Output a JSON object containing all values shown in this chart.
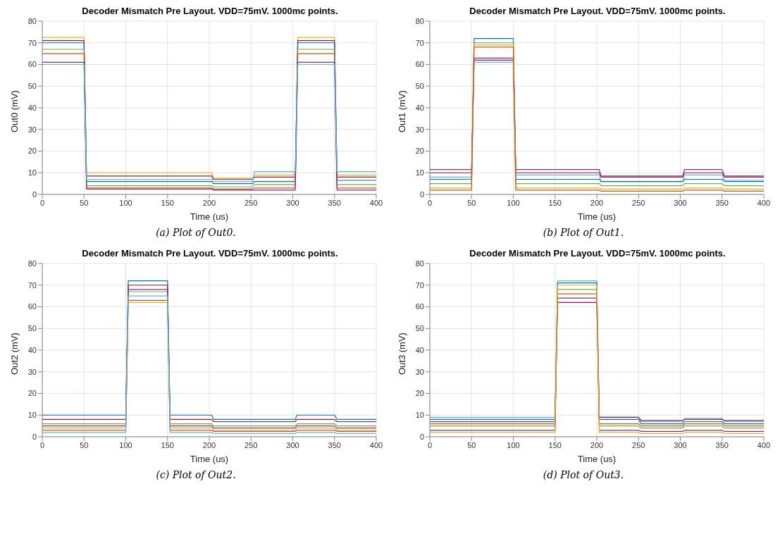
{
  "chart_data": [
    {
      "type": "line",
      "title": "Decoder Mismatch Pre Layout. VDD=75mV. 1000mc points.",
      "xlabel": "Time (us)",
      "ylabel": "Out0 (mV)",
      "annotations": [
        "(a) Plot of Out0."
      ],
      "xlim": [
        0,
        400
      ],
      "xticks": [
        0,
        50,
        100,
        150,
        200,
        250,
        300,
        350,
        400
      ],
      "ylim": [
        0,
        80
      ],
      "yticks": [
        0,
        10,
        20,
        30,
        40,
        50,
        60,
        70,
        80
      ],
      "grid": true,
      "marker": "none",
      "line_style": "solid",
      "x": [
        0,
        50,
        53,
        203,
        205,
        252,
        254,
        303,
        306,
        350,
        353,
        400
      ],
      "series": [
        {
          "color": "#edb120",
          "values": [
            72.5,
            72.5,
            10,
            10,
            7.5,
            7.5,
            9,
            9,
            72.5,
            72.5,
            9,
            9
          ]
        },
        {
          "color": "#a2142f",
          "values": [
            71,
            71,
            8.5,
            8.5,
            7,
            7,
            8,
            8,
            71,
            71,
            8,
            8
          ]
        },
        {
          "color": "#0072bd",
          "values": [
            70,
            70,
            6,
            6,
            5,
            5,
            6,
            6,
            70,
            70,
            6.5,
            6.5
          ]
        },
        {
          "color": "#77ac30",
          "values": [
            67,
            67,
            4,
            4,
            3.5,
            3.5,
            4.5,
            4.5,
            67,
            67,
            4.5,
            4.5
          ]
        },
        {
          "color": "#d95319",
          "values": [
            65,
            65,
            3,
            3,
            2.5,
            2.5,
            3,
            3,
            65,
            65,
            3,
            3
          ]
        },
        {
          "color": "#7e2f8e",
          "values": [
            61,
            61,
            2.5,
            2.5,
            2,
            2,
            2,
            2,
            61,
            61,
            2,
            2
          ]
        },
        {
          "color": "#4dbeee",
          "values": [
            60,
            60,
            7,
            7,
            6,
            6,
            10.5,
            10.5,
            60,
            60,
            10.5,
            10.5
          ]
        }
      ]
    },
    {
      "type": "line",
      "title": "Decoder Mismatch Pre Layout. VDD=75mV. 1000mc points.",
      "xlabel": "Time (us)",
      "ylabel": "Out1 (mV)",
      "annotations": [
        "(b) Plot of Out1."
      ],
      "xlim": [
        0,
        400
      ],
      "xticks": [
        0,
        50,
        100,
        150,
        200,
        250,
        300,
        350,
        400
      ],
      "ylim": [
        0,
        80
      ],
      "yticks": [
        0,
        10,
        20,
        30,
        40,
        50,
        60,
        70,
        80
      ],
      "grid": true,
      "marker": "none",
      "line_style": "solid",
      "x": [
        0,
        50,
        53,
        100,
        103,
        203,
        205,
        303,
        305,
        350,
        353,
        400
      ],
      "series": [
        {
          "color": "#7e2f8e",
          "values": [
            11.5,
            11.5,
            63,
            63,
            11.5,
            11.5,
            8.5,
            8.5,
            11.5,
            11.5,
            8.5,
            8.5
          ]
        },
        {
          "color": "#a2142f",
          "values": [
            10,
            10,
            62,
            62,
            10,
            10,
            8,
            8,
            10,
            10,
            8,
            8
          ]
        },
        {
          "color": "#4dbeee",
          "values": [
            8,
            8,
            61,
            61,
            9,
            9,
            6,
            6,
            9,
            9,
            6.5,
            6.5
          ]
        },
        {
          "color": "#0072bd",
          "values": [
            7,
            7,
            72,
            72,
            7,
            7,
            6,
            6,
            7,
            7,
            6,
            6
          ]
        },
        {
          "color": "#77ac30",
          "values": [
            5,
            5,
            70,
            70,
            5,
            5,
            4,
            4,
            5,
            5,
            4,
            4
          ]
        },
        {
          "color": "#edb120",
          "values": [
            3,
            3,
            69,
            69,
            3,
            3,
            2.5,
            2.5,
            3,
            3,
            2.5,
            2.5
          ]
        },
        {
          "color": "#d95319",
          "values": [
            2,
            2,
            68,
            68,
            2,
            2,
            1.5,
            1.5,
            2,
            2,
            1.5,
            1.5
          ]
        }
      ]
    },
    {
      "type": "line",
      "title": "Decoder Mismatch Pre Layout. VDD=75mV. 1000mc points.",
      "xlabel": "Time (us)",
      "ylabel": "Out2 (mV)",
      "annotations": [
        "(c) Plot of Out2."
      ],
      "xlim": [
        0,
        400
      ],
      "xticks": [
        0,
        50,
        100,
        150,
        200,
        250,
        300,
        350,
        400
      ],
      "ylim": [
        0,
        80
      ],
      "yticks": [
        0,
        10,
        20,
        30,
        40,
        50,
        60,
        70,
        80
      ],
      "grid": true,
      "marker": "none",
      "line_style": "solid",
      "x": [
        0,
        100,
        103,
        150,
        153,
        203,
        205,
        303,
        305,
        350,
        353,
        400
      ],
      "series": [
        {
          "color": "#0072bd",
          "values": [
            10,
            10,
            72,
            72,
            10,
            10,
            8,
            8,
            10,
            10,
            8,
            8
          ]
        },
        {
          "color": "#a2142f",
          "values": [
            8,
            8,
            70,
            70,
            8,
            8,
            7,
            7,
            8,
            8,
            7,
            7
          ]
        },
        {
          "color": "#77ac30",
          "values": [
            6,
            6,
            67,
            67,
            6,
            6,
            5,
            5,
            6,
            6,
            5,
            5
          ]
        },
        {
          "color": "#7e2f8e",
          "values": [
            5,
            5,
            68,
            68,
            5,
            5,
            4,
            4,
            5,
            5,
            4,
            4
          ]
        },
        {
          "color": "#edb120",
          "values": [
            4,
            4,
            62,
            62,
            4,
            4,
            3,
            3,
            4,
            4,
            3,
            3
          ]
        },
        {
          "color": "#d95319",
          "values": [
            3,
            3,
            63,
            63,
            3,
            3,
            2.5,
            2.5,
            3,
            3,
            2.5,
            2.5
          ]
        },
        {
          "color": "#4dbeee",
          "values": [
            2,
            2,
            65,
            65,
            2,
            2,
            1.5,
            1.5,
            2,
            2,
            1.5,
            1.5
          ]
        }
      ]
    },
    {
      "type": "line",
      "title": "Decoder Mismatch Pre Layout. VDD=75mV. 1000mc points.",
      "xlabel": "Time (us)",
      "ylabel": "Out3 (mV)",
      "annotations": [
        "(d) Plot of Out3."
      ],
      "xlim": [
        0,
        400
      ],
      "xticks": [
        0,
        50,
        100,
        150,
        200,
        250,
        300,
        350,
        400
      ],
      "ylim": [
        0,
        80
      ],
      "yticks": [
        0,
        10,
        20,
        30,
        40,
        50,
        60,
        70,
        80
      ],
      "grid": true,
      "marker": "none",
      "line_style": "solid",
      "x": [
        0,
        150,
        153,
        200,
        203,
        250,
        253,
        303,
        305,
        350,
        353,
        400
      ],
      "series": [
        {
          "color": "#4dbeee",
          "values": [
            9,
            9,
            72,
            72,
            9,
            9,
            7,
            7,
            8.5,
            8.5,
            7,
            7
          ]
        },
        {
          "color": "#0072bd",
          "values": [
            8,
            8,
            71,
            71,
            8,
            8,
            6,
            6,
            7,
            7,
            6,
            6
          ]
        },
        {
          "color": "#a2142f",
          "values": [
            7,
            7,
            62,
            62,
            9,
            9,
            7.5,
            7.5,
            8,
            8,
            7.5,
            7.5
          ]
        },
        {
          "color": "#d95319",
          "values": [
            6,
            6,
            66,
            66,
            6,
            6,
            5,
            5,
            6,
            6,
            5,
            5
          ]
        },
        {
          "color": "#77ac30",
          "values": [
            5,
            5,
            68,
            68,
            5,
            5,
            4,
            4,
            5,
            5,
            4,
            4
          ]
        },
        {
          "color": "#7e2f8e",
          "values": [
            3,
            3,
            64,
            64,
            3,
            3,
            2.5,
            2.5,
            3,
            3,
            2.5,
            2.5
          ]
        },
        {
          "color": "#edb120",
          "values": [
            2,
            2,
            70,
            70,
            2,
            2,
            1.5,
            1.5,
            2,
            2,
            1.5,
            1.5
          ]
        }
      ]
    }
  ]
}
